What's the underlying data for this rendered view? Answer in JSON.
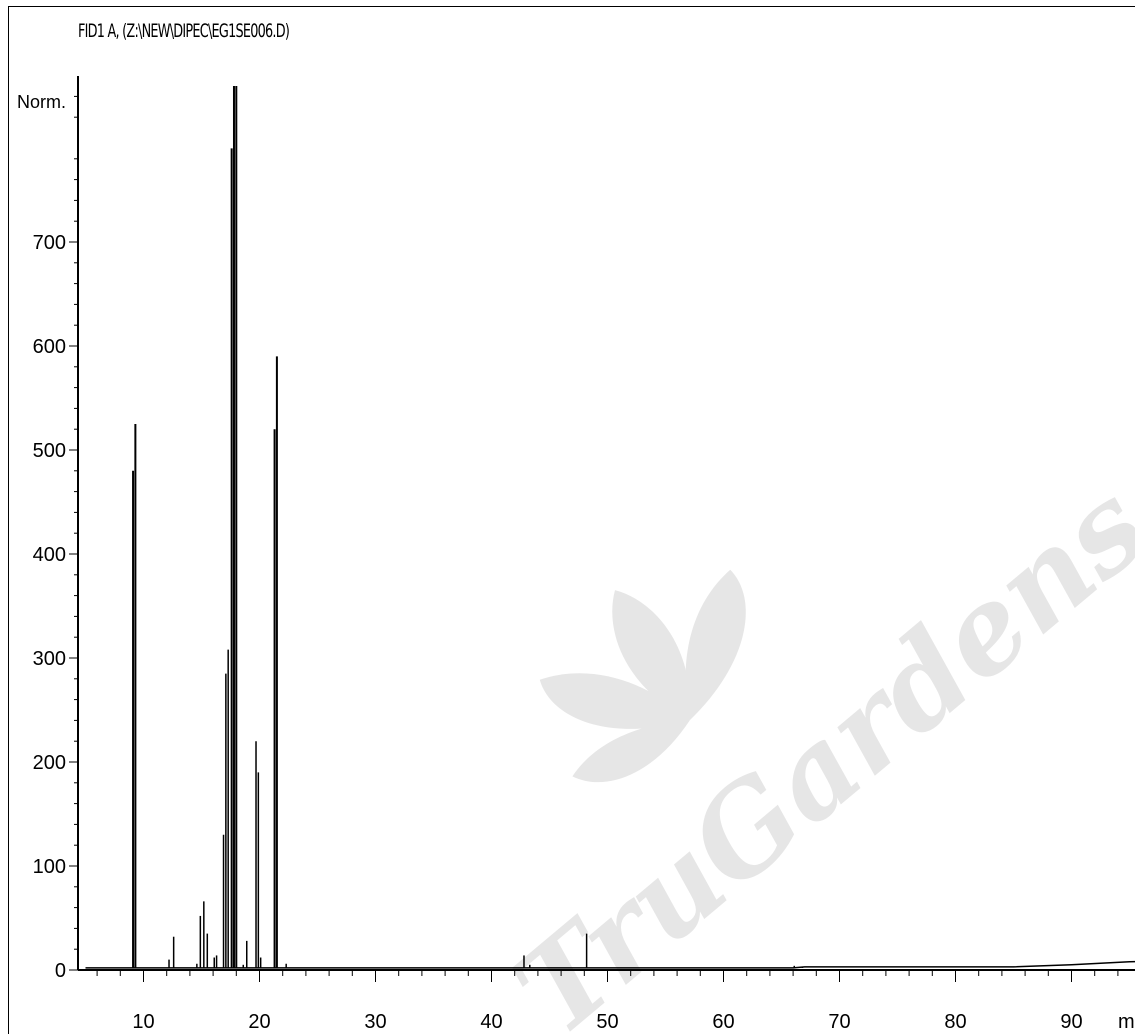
{
  "title": "FID1 A, (Z:\\NEW\\DIPEC\\EG1SE006.D)",
  "watermark": "TruGardens.com",
  "colors": {
    "axis": "#000000",
    "trace": "#000000",
    "watermark": "#e6e6e6"
  },
  "chart_data": {
    "type": "line",
    "title": "FID1 A, (Z:\\NEW\\DIPEC\\EG1SE006.D)",
    "xlabel": "min",
    "ylabel": "Norm.",
    "xlim": [
      5,
      100
    ],
    "ylim": [
      0,
      850
    ],
    "x_ticks": [
      10,
      20,
      30,
      40,
      50,
      60,
      70,
      80,
      90
    ],
    "x_tick_labels": [
      "10",
      "20",
      "30",
      "40",
      "50",
      "60",
      "70",
      "80",
      "90"
    ],
    "y_ticks": [
      0,
      100,
      200,
      300,
      400,
      500,
      600,
      700
    ],
    "y_tick_labels": [
      "0",
      "100",
      "200",
      "300",
      "400",
      "500",
      "600",
      "700"
    ],
    "grid": false,
    "legend": "none",
    "peaks": [
      {
        "rt": 9.1,
        "height": 480
      },
      {
        "rt": 9.3,
        "height": 525
      },
      {
        "rt": 12.2,
        "height": 10
      },
      {
        "rt": 12.6,
        "height": 32
      },
      {
        "rt": 14.6,
        "height": 6
      },
      {
        "rt": 14.9,
        "height": 52
      },
      {
        "rt": 15.2,
        "height": 66
      },
      {
        "rt": 15.5,
        "height": 35
      },
      {
        "rt": 16.1,
        "height": 12
      },
      {
        "rt": 16.3,
        "height": 14
      },
      {
        "rt": 16.9,
        "height": 130
      },
      {
        "rt": 17.1,
        "height": 285
      },
      {
        "rt": 17.3,
        "height": 308
      },
      {
        "rt": 17.6,
        "height": 790
      },
      {
        "rt": 17.8,
        "height": 850
      },
      {
        "rt": 18.0,
        "height": 850
      },
      {
        "rt": 18.6,
        "height": 5
      },
      {
        "rt": 18.9,
        "height": 28
      },
      {
        "rt": 19.7,
        "height": 220
      },
      {
        "rt": 19.9,
        "height": 190
      },
      {
        "rt": 20.1,
        "height": 12
      },
      {
        "rt": 21.3,
        "height": 520
      },
      {
        "rt": 21.5,
        "height": 590
      },
      {
        "rt": 22.3,
        "height": 6
      },
      {
        "rt": 42.8,
        "height": 14
      },
      {
        "rt": 43.3,
        "height": 5
      },
      {
        "rt": 48.2,
        "height": 35
      },
      {
        "rt": 66.1,
        "height": 4
      },
      {
        "rt": 66.8,
        "height": 3
      }
    ],
    "baseline": [
      {
        "x": 5,
        "y": 2
      },
      {
        "x": 66,
        "y": 2
      },
      {
        "x": 67,
        "y": 3
      },
      {
        "x": 85,
        "y": 3
      },
      {
        "x": 90,
        "y": 5
      },
      {
        "x": 95,
        "y": 8
      },
      {
        "x": 100,
        "y": 9
      }
    ]
  }
}
